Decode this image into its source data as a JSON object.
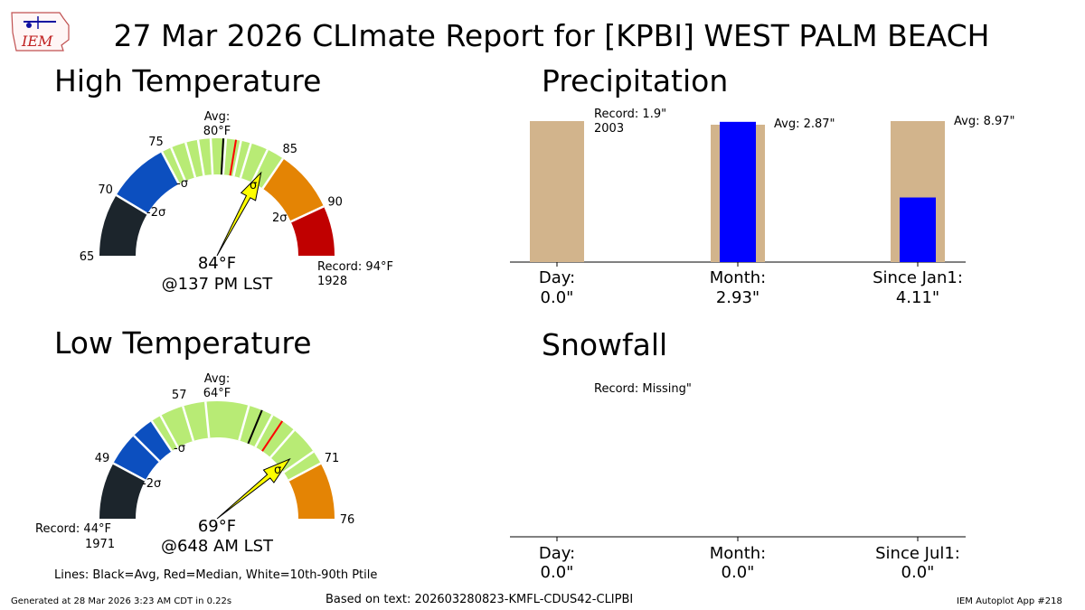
{
  "title": "27 Mar 2026 CLImate Report for [KPBI] WEST PALM BEACH",
  "logo_text": "IEM",
  "high": {
    "title": "High Temperature",
    "avg_label": "Avg:",
    "avg_value": "80°F",
    "observed": "84°F",
    "observed_time": "@137 PM LST",
    "record_line1": "Record: 94°F",
    "record_line2": "1928",
    "sigma_labels": [
      "-2σ",
      "-σ",
      "σ",
      "2σ"
    ]
  },
  "low": {
    "title": "Low Temperature",
    "avg_label": "Avg:",
    "avg_value": "64°F",
    "observed": "69°F",
    "observed_time": "@648 AM LST",
    "record_line1": "Record: 44°F",
    "record_line2": "1971",
    "sigma_labels": [
      "-2σ",
      "-σ",
      "σ"
    ]
  },
  "legend_note": "Lines: Black=Avg, Red=Median, White=10th-90th Ptile",
  "precip": {
    "title": "Precipitation",
    "record_line1": "Record: 1.9\"",
    "record_line2": "2003",
    "month_avg_label": "Avg: 2.87\"",
    "ytd_avg_label": "Avg: 8.97\"",
    "categories": [
      {
        "name": "Day:",
        "value": "0.0\""
      },
      {
        "name": "Month:",
        "value": "2.93\""
      },
      {
        "name": "Since Jan1:",
        "value": "4.11\""
      }
    ]
  },
  "snow": {
    "title": "Snowfall",
    "record_label": "Record: Missing\"",
    "categories": [
      {
        "name": "Day:",
        "value": "0.0\""
      },
      {
        "name": "Month:",
        "value": "0.0\""
      },
      {
        "name": "Since Jul1:",
        "value": "0.0\""
      }
    ]
  },
  "footer": {
    "generated": "Generated at 28 Mar 2026 3:23 AM CDT in 0.22s",
    "based_on": "Based on text: 202603280823-KMFL-CDUS42-CLIPBI",
    "app": "IEM Autoplot App #218"
  },
  "colors": {
    "black": "#1c252c",
    "blue": "#0c4fbf",
    "green": "#b8eb75",
    "orange": "#e48404",
    "red": "#c00000",
    "needle": "#ffff00",
    "precip_obs": "#0000ff",
    "precip_ref": "#d2b48c"
  },
  "chart_data": [
    {
      "type": "gauge",
      "title": "High Temperature",
      "units": "°F",
      "range": [
        65,
        94
      ],
      "observed": 84,
      "average": 80,
      "tick_labels": [
        65,
        70,
        75,
        85,
        90
      ],
      "bands": [
        {
          "from": 65,
          "to": 70,
          "color": "black"
        },
        {
          "from": 70,
          "to": 75,
          "color": "blue"
        },
        {
          "from": 75,
          "to": 85,
          "color": "green"
        },
        {
          "from": 85,
          "to": 90,
          "color": "orange"
        },
        {
          "from": 90,
          "to": 94,
          "color": "red"
        }
      ],
      "median": 81,
      "percentiles": [
        75.8,
        77,
        78,
        79,
        80.2,
        81.4,
        82.2,
        83.6
      ]
    },
    {
      "type": "gauge",
      "title": "Low Temperature",
      "units": "°F",
      "range": [
        44,
        76
      ],
      "observed": 69,
      "average": 64,
      "tick_labels": [
        49,
        57,
        71,
        76
      ],
      "bands": [
        {
          "from": 44,
          "to": 49,
          "color": "black"
        },
        {
          "from": 49,
          "to": 54,
          "color": "blue"
        },
        {
          "from": 54,
          "to": 71,
          "color": "green"
        },
        {
          "from": 71,
          "to": 76,
          "color": "orange"
        }
      ],
      "median": 66,
      "percentiles": [
        54.9,
        57,
        59,
        62.8,
        65,
        67.3,
        69.8,
        52
      ]
    },
    {
      "type": "bar",
      "title": "Precipitation",
      "categories": [
        "Day",
        "Month",
        "Since Jan1"
      ],
      "series": [
        {
          "name": "Avg",
          "values": [
            0.12,
            2.87,
            8.97
          ]
        },
        {
          "name": "Record",
          "values": [
            1.9,
            null,
            null
          ]
        },
        {
          "name": "Observed",
          "values": [
            0.0,
            2.93,
            4.11
          ]
        }
      ]
    },
    {
      "type": "bar",
      "title": "Snowfall",
      "categories": [
        "Day",
        "Month",
        "Since Jul1"
      ],
      "series": [
        {
          "name": "Observed",
          "values": [
            0.0,
            0.0,
            0.0
          ]
        }
      ]
    }
  ]
}
